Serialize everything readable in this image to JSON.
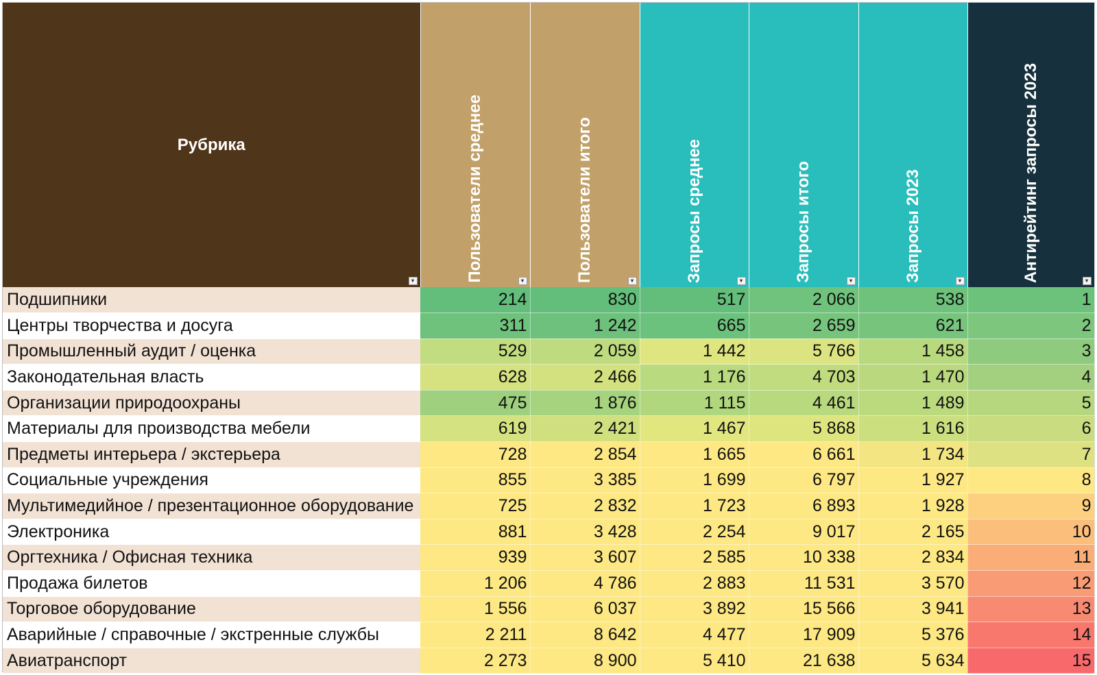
{
  "table": {
    "header_colors": [
      "#4f3519",
      "#c1a069",
      "#c1a069",
      "#29bdbb",
      "#29bdbb",
      "#29bdbb",
      "#17303d"
    ],
    "columns": [
      "Рубрика",
      "Пользователи среднее",
      "Пользователи итого",
      "Запросы среднее",
      "Запросы итого",
      "Запросы 2023",
      "Антирейтинг запросы 2023"
    ],
    "rows": [
      {
        "name": "Подшипники",
        "values": [
          "214",
          "830",
          "517",
          "2 066",
          "538",
          "1"
        ],
        "colors": [
          "#63be7b",
          "#63be7b",
          "#63be7b",
          "#70c37c",
          "#6ec27c",
          "#6cc17b"
        ]
      },
      {
        "name": "Центры творчества и досуга",
        "values": [
          "311",
          "1 242",
          "665",
          "2 659",
          "621",
          "2"
        ],
        "colors": [
          "#6ec27c",
          "#6dc17c",
          "#6bc27c",
          "#77c57d",
          "#77c57d",
          "#7dc67d"
        ]
      },
      {
        "name": "Промышленный аудит / оценка",
        "values": [
          "529",
          "2 059",
          "1 442",
          "5 766",
          "1 458",
          "3"
        ],
        "colors": [
          "#c2dd7f",
          "#bedb7f",
          "#dfe57f",
          "#dbe480",
          "#b8d97e",
          "#8fcb7e"
        ]
      },
      {
        "name": "Законодательная власть",
        "values": [
          "628",
          "2 466",
          "1 176",
          "4 703",
          "1 470",
          "4"
        ],
        "colors": [
          "#d5e27f",
          "#d3e17f",
          "#b9da7e",
          "#c1dc7f",
          "#bad97e",
          "#a2d07e"
        ]
      },
      {
        "name": "Организации природоохраны",
        "values": [
          "475",
          "1 876",
          "1 115",
          "4 461",
          "1 489",
          "5"
        ],
        "colors": [
          "#9fd07e",
          "#a6d37e",
          "#b1d77e",
          "#b8d97e",
          "#bbda7e",
          "#b6d77e"
        ]
      },
      {
        "name": "Материалы для производства мебели",
        "values": [
          "619",
          "2 421",
          "1 467",
          "5 868",
          "1 616",
          "6"
        ],
        "colors": [
          "#d4e27f",
          "#d0e07f",
          "#e2e67f",
          "#dee57f",
          "#cbdf7f",
          "#c9dc7f"
        ]
      },
      {
        "name": "Предметы интерьера / экстерьера",
        "values": [
          "728",
          "2 854",
          "1 665",
          "6 661",
          "1 734",
          "7"
        ],
        "colors": [
          "#fde883",
          "#fde883",
          "#fde883",
          "#fde883",
          "#f3e682",
          "#dde181"
        ]
      },
      {
        "name": "Социальные учреждения",
        "values": [
          "855",
          "3 385",
          "1 699",
          "6 797",
          "1 927",
          "8"
        ],
        "colors": [
          "#fde883",
          "#fde883",
          "#fde883",
          "#fde883",
          "#fde883",
          "#fde883"
        ]
      },
      {
        "name": "Мультимедийное / презентационное оборудование",
        "values": [
          "725",
          "2 832",
          "1 723",
          "6 893",
          "1 928",
          "9"
        ],
        "colors": [
          "#fde883",
          "#fde883",
          "#fde883",
          "#fde883",
          "#fde883",
          "#fcd07f"
        ]
      },
      {
        "name": "Электроника",
        "values": [
          "881",
          "3 428",
          "2 254",
          "9 017",
          "2 165",
          "10"
        ],
        "colors": [
          "#fde883",
          "#fde883",
          "#fde883",
          "#fde883",
          "#fde883",
          "#fbbe7b"
        ]
      },
      {
        "name": "Оргтехника / Офисная техника",
        "values": [
          "939",
          "3 607",
          "2 585",
          "10 338",
          "2 834",
          "11"
        ],
        "colors": [
          "#fde883",
          "#fde883",
          "#fde883",
          "#fde883",
          "#fde883",
          "#fbad78"
        ]
      },
      {
        "name": "Продажа билетов",
        "values": [
          "1 206",
          "4 786",
          "2 883",
          "11 531",
          "3 570",
          "12"
        ],
        "colors": [
          "#fde883",
          "#fde883",
          "#fde883",
          "#fde883",
          "#fde883",
          "#f99c75"
        ]
      },
      {
        "name": "Торговое оборудование",
        "values": [
          "1 556",
          "6 037",
          "3 892",
          "15 566",
          "3 941",
          "13"
        ],
        "colors": [
          "#fde883",
          "#fde883",
          "#fde883",
          "#fde883",
          "#fde883",
          "#f98a72"
        ]
      },
      {
        "name": "Аварийные / справочные / экстренные службы",
        "values": [
          "2 211",
          "8 642",
          "4 477",
          "17 909",
          "5 376",
          "14"
        ],
        "colors": [
          "#fde883",
          "#fde883",
          "#fde883",
          "#fde883",
          "#fde883",
          "#f8786e"
        ]
      },
      {
        "name": "Авиатранспорт",
        "values": [
          "2 273",
          "8 900",
          "5 410",
          "21 638",
          "5 634",
          "15"
        ],
        "colors": [
          "#fde883",
          "#fde883",
          "#fde883",
          "#fde883",
          "#fde883",
          "#f8696b"
        ]
      }
    ]
  }
}
